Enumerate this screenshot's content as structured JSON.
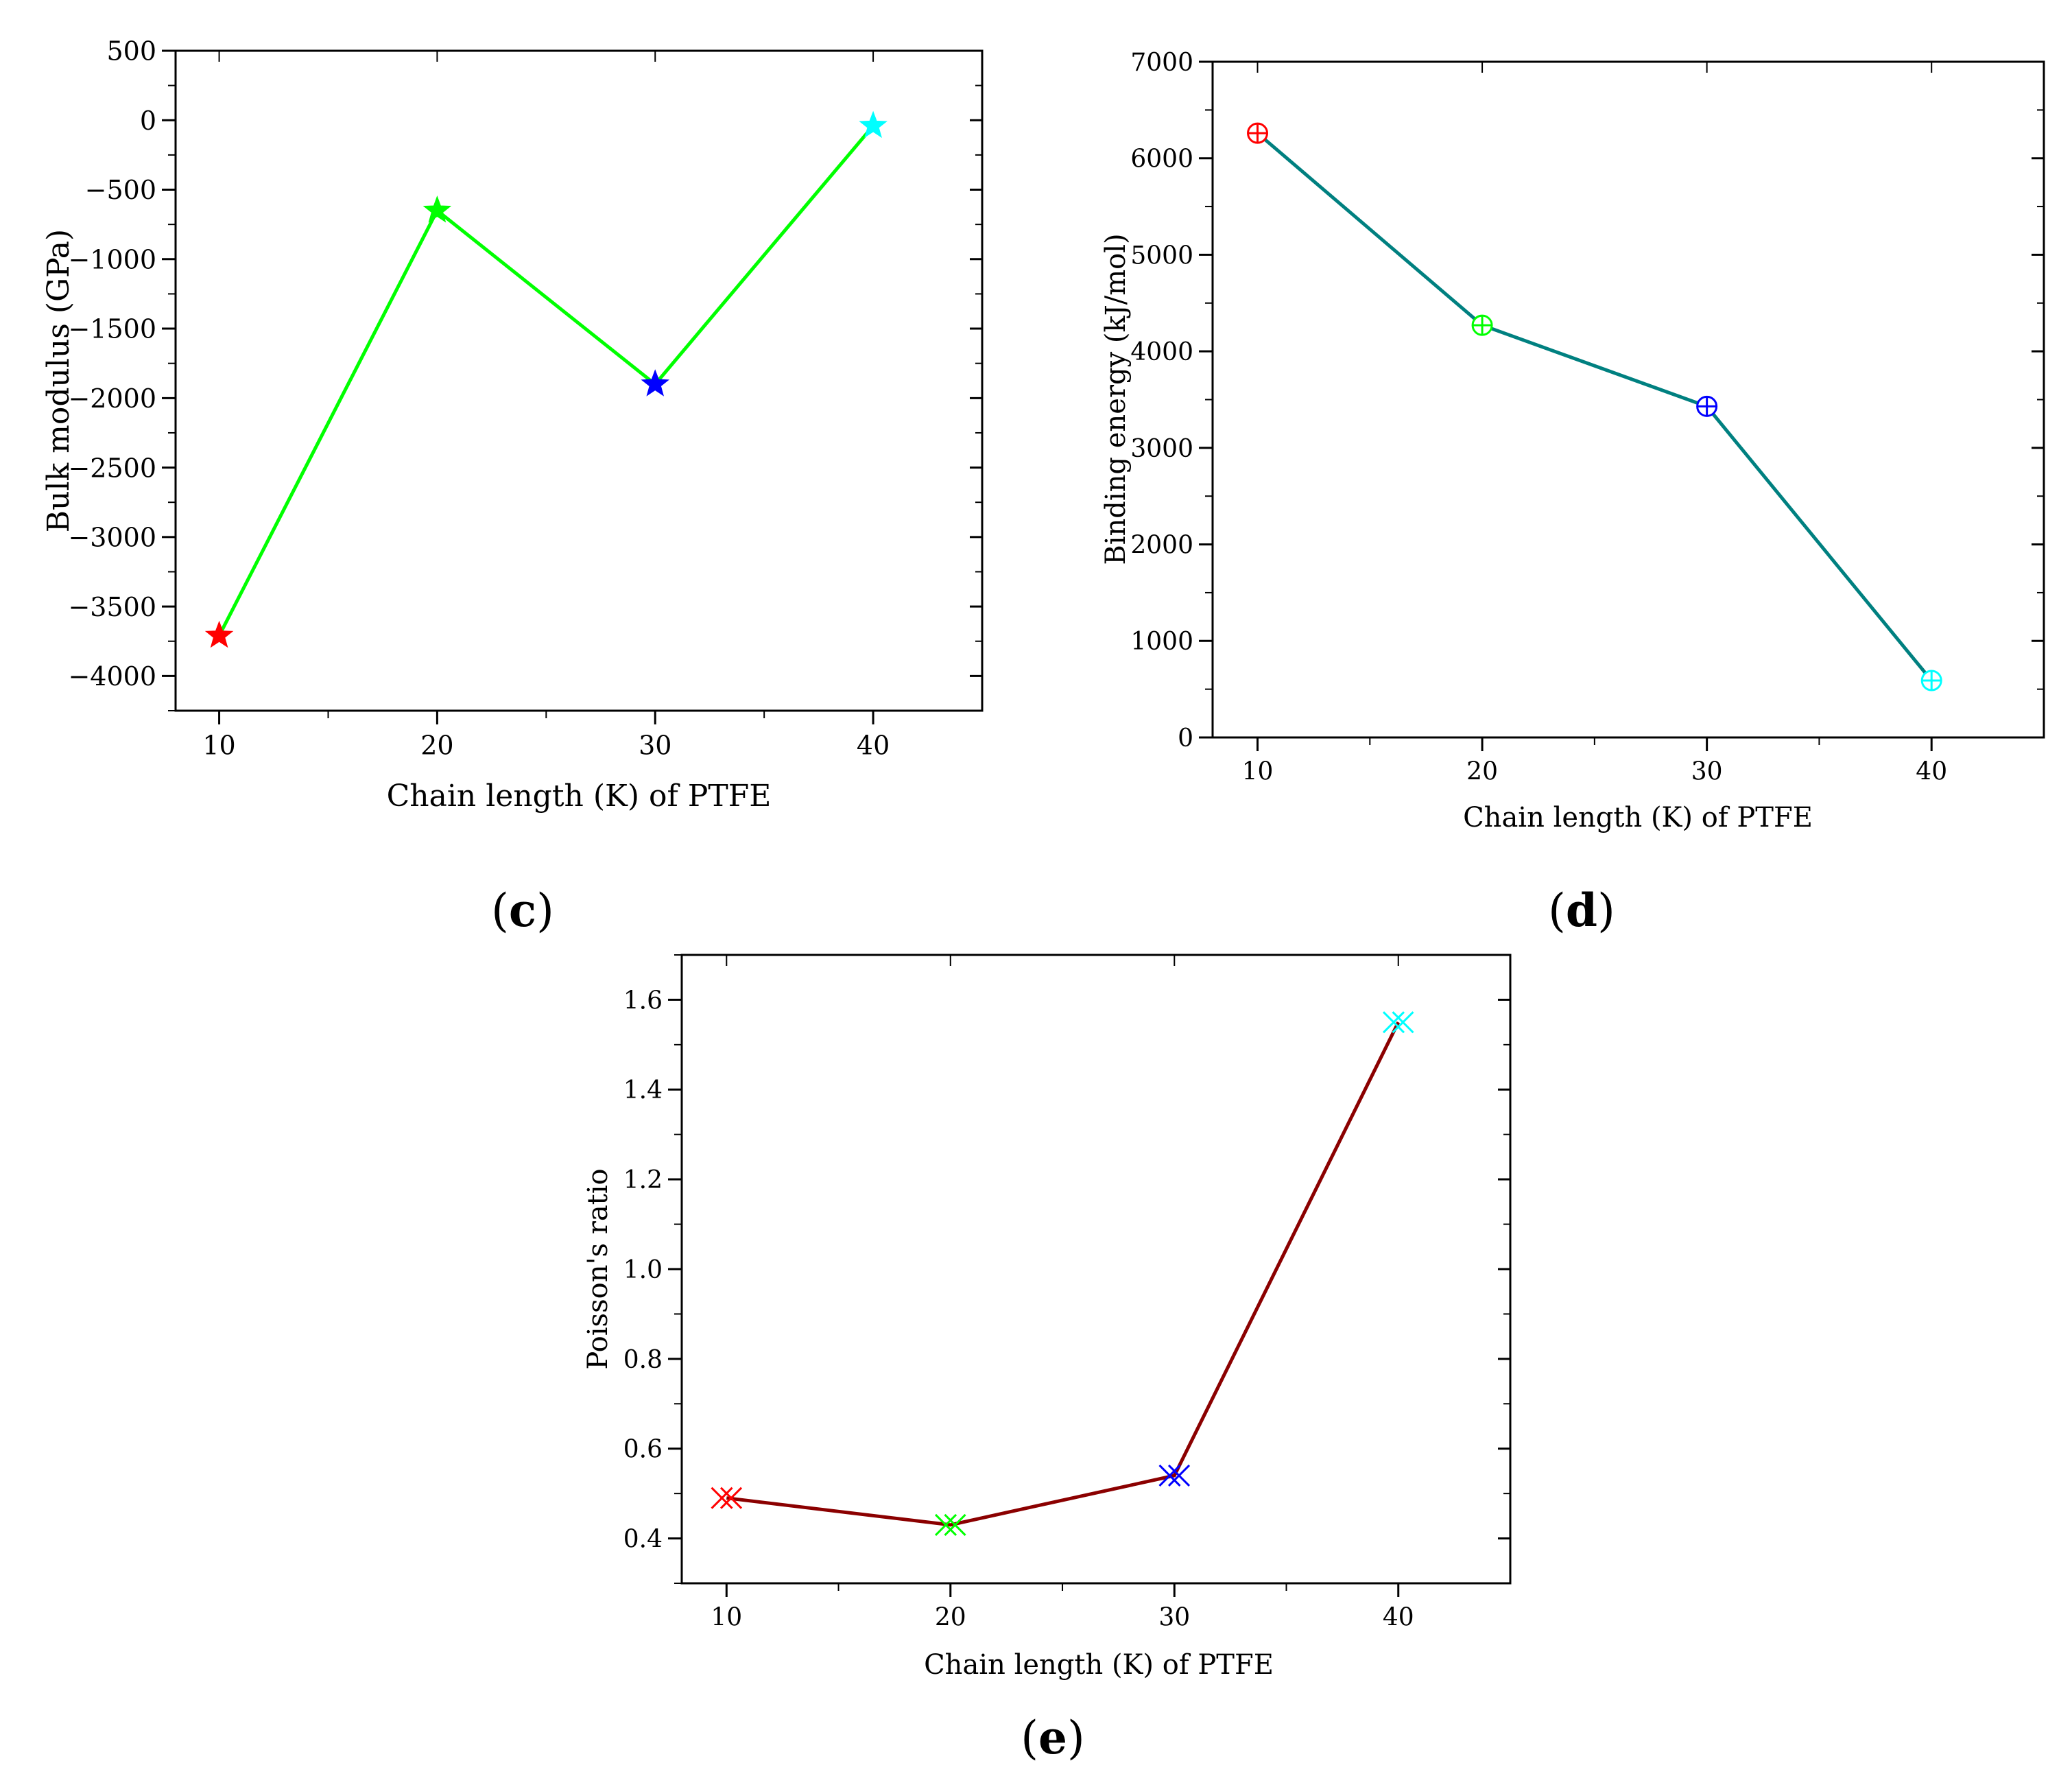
{
  "chart_data": [
    {
      "id": "c",
      "type": "line",
      "panel_label": "c",
      "title": "",
      "xlabel": "Chain length (K) of PTFE",
      "ylabel": "Bulk modulus (GPa)",
      "x": [
        10,
        20,
        30,
        40
      ],
      "values": [
        -3710,
        -650,
        -1900,
        -40
      ],
      "point_colors": [
        "#ff0000",
        "#00ff00",
        "#0000ff",
        "#00ffff"
      ],
      "line_color": "#00ff00",
      "marker": "star",
      "xlim": [
        8,
        45
      ],
      "ylim": [
        -4250,
        500
      ],
      "xticks": [
        10,
        20,
        30,
        40
      ],
      "xtick_labels": [
        "10",
        "20",
        "30",
        "40"
      ],
      "yticks": [
        500,
        0,
        -500,
        -1000,
        -1500,
        -2000,
        -2500,
        -3000,
        -3500,
        -4000
      ],
      "ytick_labels": [
        "500",
        "0",
        "−500",
        "−1000",
        "−1500",
        "−2000",
        "−2500",
        "−3000",
        "−3500",
        "−4000"
      ],
      "grid": false
    },
    {
      "id": "d",
      "type": "line",
      "panel_label": "d",
      "title": "",
      "xlabel": "Chain length (K) of PTFE",
      "ylabel": "Binding energy (kJ/mol)",
      "x": [
        10,
        20,
        30,
        40
      ],
      "values": [
        6260,
        4270,
        3430,
        590
      ],
      "point_colors": [
        "#ff0000",
        "#00ff00",
        "#0000ff",
        "#00ffff"
      ],
      "line_color": "#008080",
      "marker": "circle-plus",
      "xlim": [
        8,
        45
      ],
      "ylim": [
        0,
        7000
      ],
      "xticks": [
        10,
        20,
        30,
        40
      ],
      "xtick_labels": [
        "10",
        "20",
        "30",
        "40"
      ],
      "yticks": [
        0,
        1000,
        2000,
        3000,
        4000,
        5000,
        6000,
        7000
      ],
      "ytick_labels": [
        "0",
        "1000",
        "2000",
        "3000",
        "4000",
        "5000",
        "6000",
        "7000"
      ],
      "grid": false
    },
    {
      "id": "e",
      "type": "line",
      "panel_label": "e",
      "title": "",
      "xlabel": "Chain length (K) of PTFE",
      "ylabel": "Poisson's ratio",
      "x": [
        10,
        20,
        30,
        40
      ],
      "values": [
        0.49,
        0.43,
        0.54,
        1.55
      ],
      "point_colors": [
        "#ff0000",
        "#00ff00",
        "#0000ff",
        "#00ffff"
      ],
      "line_color": "#8b0000",
      "marker": "double-x",
      "xlim": [
        8,
        45
      ],
      "ylim": [
        0.3,
        1.7
      ],
      "xticks": [
        10,
        20,
        30,
        40
      ],
      "xtick_labels": [
        "10",
        "20",
        "30",
        "40"
      ],
      "yticks": [
        0.4,
        0.6,
        0.8,
        1.0,
        1.2,
        1.4,
        1.6
      ],
      "ytick_labels": [
        "0.4",
        "0.6",
        "0.8",
        "1.0",
        "1.2",
        "1.4",
        "1.6"
      ],
      "grid": false
    }
  ]
}
